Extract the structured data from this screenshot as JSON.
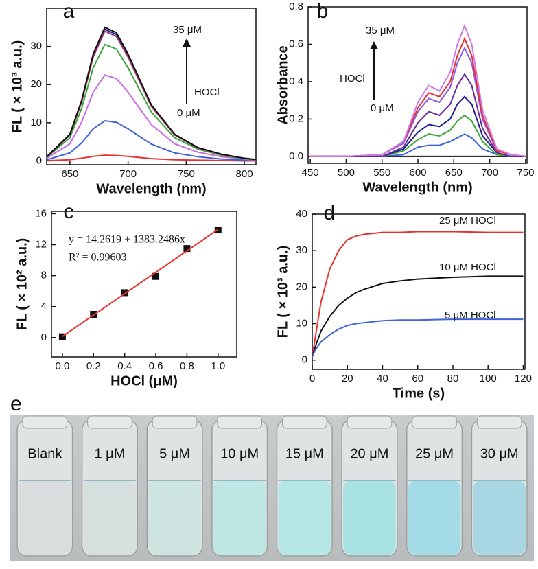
{
  "chart_data": [
    {
      "type": "line",
      "panel_label": "a",
      "x_label": "Wavelength (nm)",
      "y_label": "FL ( × 10³ a.u.)",
      "annotations": [
        "35 μM",
        "HOCl",
        "0 μM"
      ],
      "x": [
        630,
        650,
        660,
        670,
        680,
        690,
        700,
        720,
        740,
        760,
        780,
        800,
        810
      ],
      "series": [
        {
          "color": "#e8312f",
          "values": [
            0.05,
            0.3,
            0.7,
            1.2,
            1.5,
            1.4,
            1.2,
            0.6,
            0.3,
            0.2,
            0.1,
            0,
            0
          ]
        },
        {
          "color": "#3c64d6",
          "values": [
            0.3,
            2.1,
            4.7,
            8.4,
            10.5,
            10.1,
            8.4,
            4.4,
            2.1,
            1.1,
            0.5,
            0.2,
            0.1
          ]
        },
        {
          "color": "#cc66e6",
          "values": [
            0.7,
            4.5,
            10.1,
            18,
            22.5,
            21.6,
            18,
            9.5,
            4.5,
            2.3,
            1.1,
            0.5,
            0.2
          ]
        },
        {
          "color": "#3aa63a",
          "values": [
            0.9,
            6.1,
            13.7,
            24.4,
            30.5,
            29.3,
            24.4,
            12.8,
            6.1,
            3.1,
            1.5,
            0.6,
            0.3
          ]
        },
        {
          "color": "#1f1f8f",
          "values": [
            1,
            6.9,
            15.5,
            27.6,
            34.5,
            33.1,
            27.6,
            14.5,
            6.9,
            3.5,
            1.7,
            0.7,
            0.3
          ]
        },
        {
          "color": "#a0306a",
          "values": [
            1,
            6.8,
            15.3,
            27.2,
            34,
            32.6,
            27.2,
            14.3,
            6.8,
            3.4,
            1.7,
            0.7,
            0.3
          ]
        },
        {
          "color": "#111111",
          "values": [
            1.1,
            7,
            15.8,
            28,
            35,
            33.6,
            28,
            14.7,
            7,
            3.5,
            1.8,
            0.7,
            0.4
          ]
        }
      ],
      "xlim": [
        630,
        810
      ],
      "xticks": [
        650,
        700,
        750,
        800
      ],
      "ylim": [
        -1,
        40
      ],
      "yticks": [
        0,
        10,
        20,
        30
      ]
    },
    {
      "type": "line",
      "panel_label": "b",
      "x_label": "Wavelength (nm)",
      "y_label": "Absorbance",
      "annotations": [
        "35 μM",
        "HOCl",
        "0 μM"
      ],
      "x": [
        450,
        500,
        550,
        580,
        600,
        615,
        630,
        645,
        655,
        665,
        675,
        690,
        710,
        730,
        750
      ],
      "series": [
        {
          "color": "#111111",
          "values": [
            0,
            0,
            0,
            0,
            0,
            0,
            0,
            0,
            0,
            0,
            0,
            0,
            0,
            0,
            0
          ]
        },
        {
          "color": "#3c64d6",
          "values": [
            0,
            0,
            0,
            0.01,
            0.05,
            0.06,
            0.06,
            0.08,
            0.1,
            0.12,
            0.1,
            0.04,
            0.01,
            0,
            0
          ]
        },
        {
          "color": "#3aa63a",
          "values": [
            0,
            0,
            0,
            0.03,
            0.09,
            0.12,
            0.11,
            0.14,
            0.19,
            0.22,
            0.19,
            0.08,
            0.01,
            0,
            0
          ]
        },
        {
          "color": "#1f1f8f",
          "values": [
            0,
            0,
            0,
            0.04,
            0.13,
            0.17,
            0.16,
            0.2,
            0.28,
            0.32,
            0.28,
            0.11,
            0.02,
            0,
            0
          ]
        },
        {
          "color": "#6a2a9a",
          "values": [
            0,
            0,
            0,
            0.05,
            0.18,
            0.24,
            0.22,
            0.28,
            0.38,
            0.44,
            0.38,
            0.15,
            0.02,
            0,
            0
          ]
        },
        {
          "color": "#8a5ae0",
          "values": [
            0,
            0,
            0.01,
            0.07,
            0.24,
            0.31,
            0.29,
            0.37,
            0.5,
            0.58,
            0.5,
            0.2,
            0.03,
            0.01,
            0
          ]
        },
        {
          "color": "#e8312f",
          "values": [
            0,
            0,
            0.01,
            0.08,
            0.26,
            0.34,
            0.32,
            0.4,
            0.54,
            0.63,
            0.54,
            0.22,
            0.03,
            0.01,
            0
          ]
        },
        {
          "color": "#d07ae8",
          "values": [
            0,
            0,
            0.01,
            0.08,
            0.29,
            0.38,
            0.35,
            0.45,
            0.6,
            0.7,
            0.6,
            0.25,
            0.04,
            0.01,
            0
          ]
        }
      ],
      "xlim": [
        447,
        752
      ],
      "xticks": [
        450,
        500,
        550,
        600,
        650,
        700,
        750
      ],
      "ylim": [
        -0.037,
        0.8
      ],
      "yticks": [
        {
          "value": 0,
          "label": "0.0"
        },
        0.2,
        0.4,
        0.6,
        0.8
      ]
    },
    {
      "type": "scatter",
      "panel_label": "c",
      "x_label": "HOCl (μM)",
      "y_label": "FL ( × 10² a.u.)",
      "annotations": [
        "y = 14.2619 + 1383.2486x",
        "R² = 0.99603"
      ],
      "series": [
        {
          "style": "square",
          "color": "#111111",
          "x": [
            0,
            0.2,
            0.4,
            0.6,
            0.8,
            1.0
          ],
          "values": [
            0.1,
            3.0,
            5.8,
            7.9,
            11.5,
            13.9
          ]
        },
        {
          "style": "line",
          "color": "#e8312f",
          "x": [
            0,
            1.0
          ],
          "values": [
            0.14,
            13.97
          ]
        }
      ],
      "xlim": [
        -0.07,
        1.12
      ],
      "xticks": [
        {
          "value": 0,
          "label": "0.0"
        },
        0.2,
        0.4,
        0.6,
        0.8,
        {
          "value": 1,
          "label": "1.0"
        }
      ],
      "ylim": [
        -2.5,
        16.3
      ],
      "yticks": [
        0,
        4,
        8,
        12,
        16
      ]
    },
    {
      "type": "line",
      "panel_label": "d",
      "x_label": "Time (s)",
      "y_label": "FL ( × 10³ a.u.)",
      "x": [
        0,
        2,
        5,
        10,
        15,
        20,
        25,
        30,
        40,
        50,
        60,
        80,
        100,
        120
      ],
      "series": [
        {
          "name": "25 μM HOCl",
          "color": "#e8312f",
          "values": [
            1,
            7,
            16,
            25,
            30,
            33,
            34,
            34.5,
            35,
            35,
            35.2,
            35.2,
            35,
            35
          ]
        },
        {
          "name": "10 μM HOCl",
          "color": "#111111",
          "values": [
            1,
            4,
            8,
            12,
            15,
            17,
            18.5,
            19.5,
            21,
            21.7,
            22.2,
            22.7,
            23,
            23
          ]
        },
        {
          "name": "5 μM HOCl",
          "color": "#3c64d6",
          "values": [
            1,
            3,
            5,
            7,
            8.5,
            9.5,
            10,
            10.3,
            10.8,
            11,
            11,
            11.2,
            11.2,
            11.2
          ]
        }
      ],
      "xlim": [
        0,
        121
      ],
      "xticks": [
        0,
        20,
        40,
        60,
        80,
        100,
        120
      ],
      "ylim": [
        -2.5,
        40
      ],
      "yticks": [
        0,
        10,
        20,
        30,
        40
      ]
    }
  ],
  "photo": {
    "panel_label": "e",
    "samples": [
      {
        "label": "Blank",
        "color": "#d9dddd"
      },
      {
        "label": "1 μM",
        "color": "#d5e0de"
      },
      {
        "label": "5 μM",
        "color": "#cde4e0"
      },
      {
        "label": "10 μM",
        "color": "#bee6e2"
      },
      {
        "label": "15 μM",
        "color": "#b4e6e5"
      },
      {
        "label": "20 μM",
        "color": "#a8e2e2"
      },
      {
        "label": "25 μM",
        "color": "#a3dbe6"
      },
      {
        "label": "30 μM",
        "color": "#a9d6e3"
      }
    ]
  }
}
